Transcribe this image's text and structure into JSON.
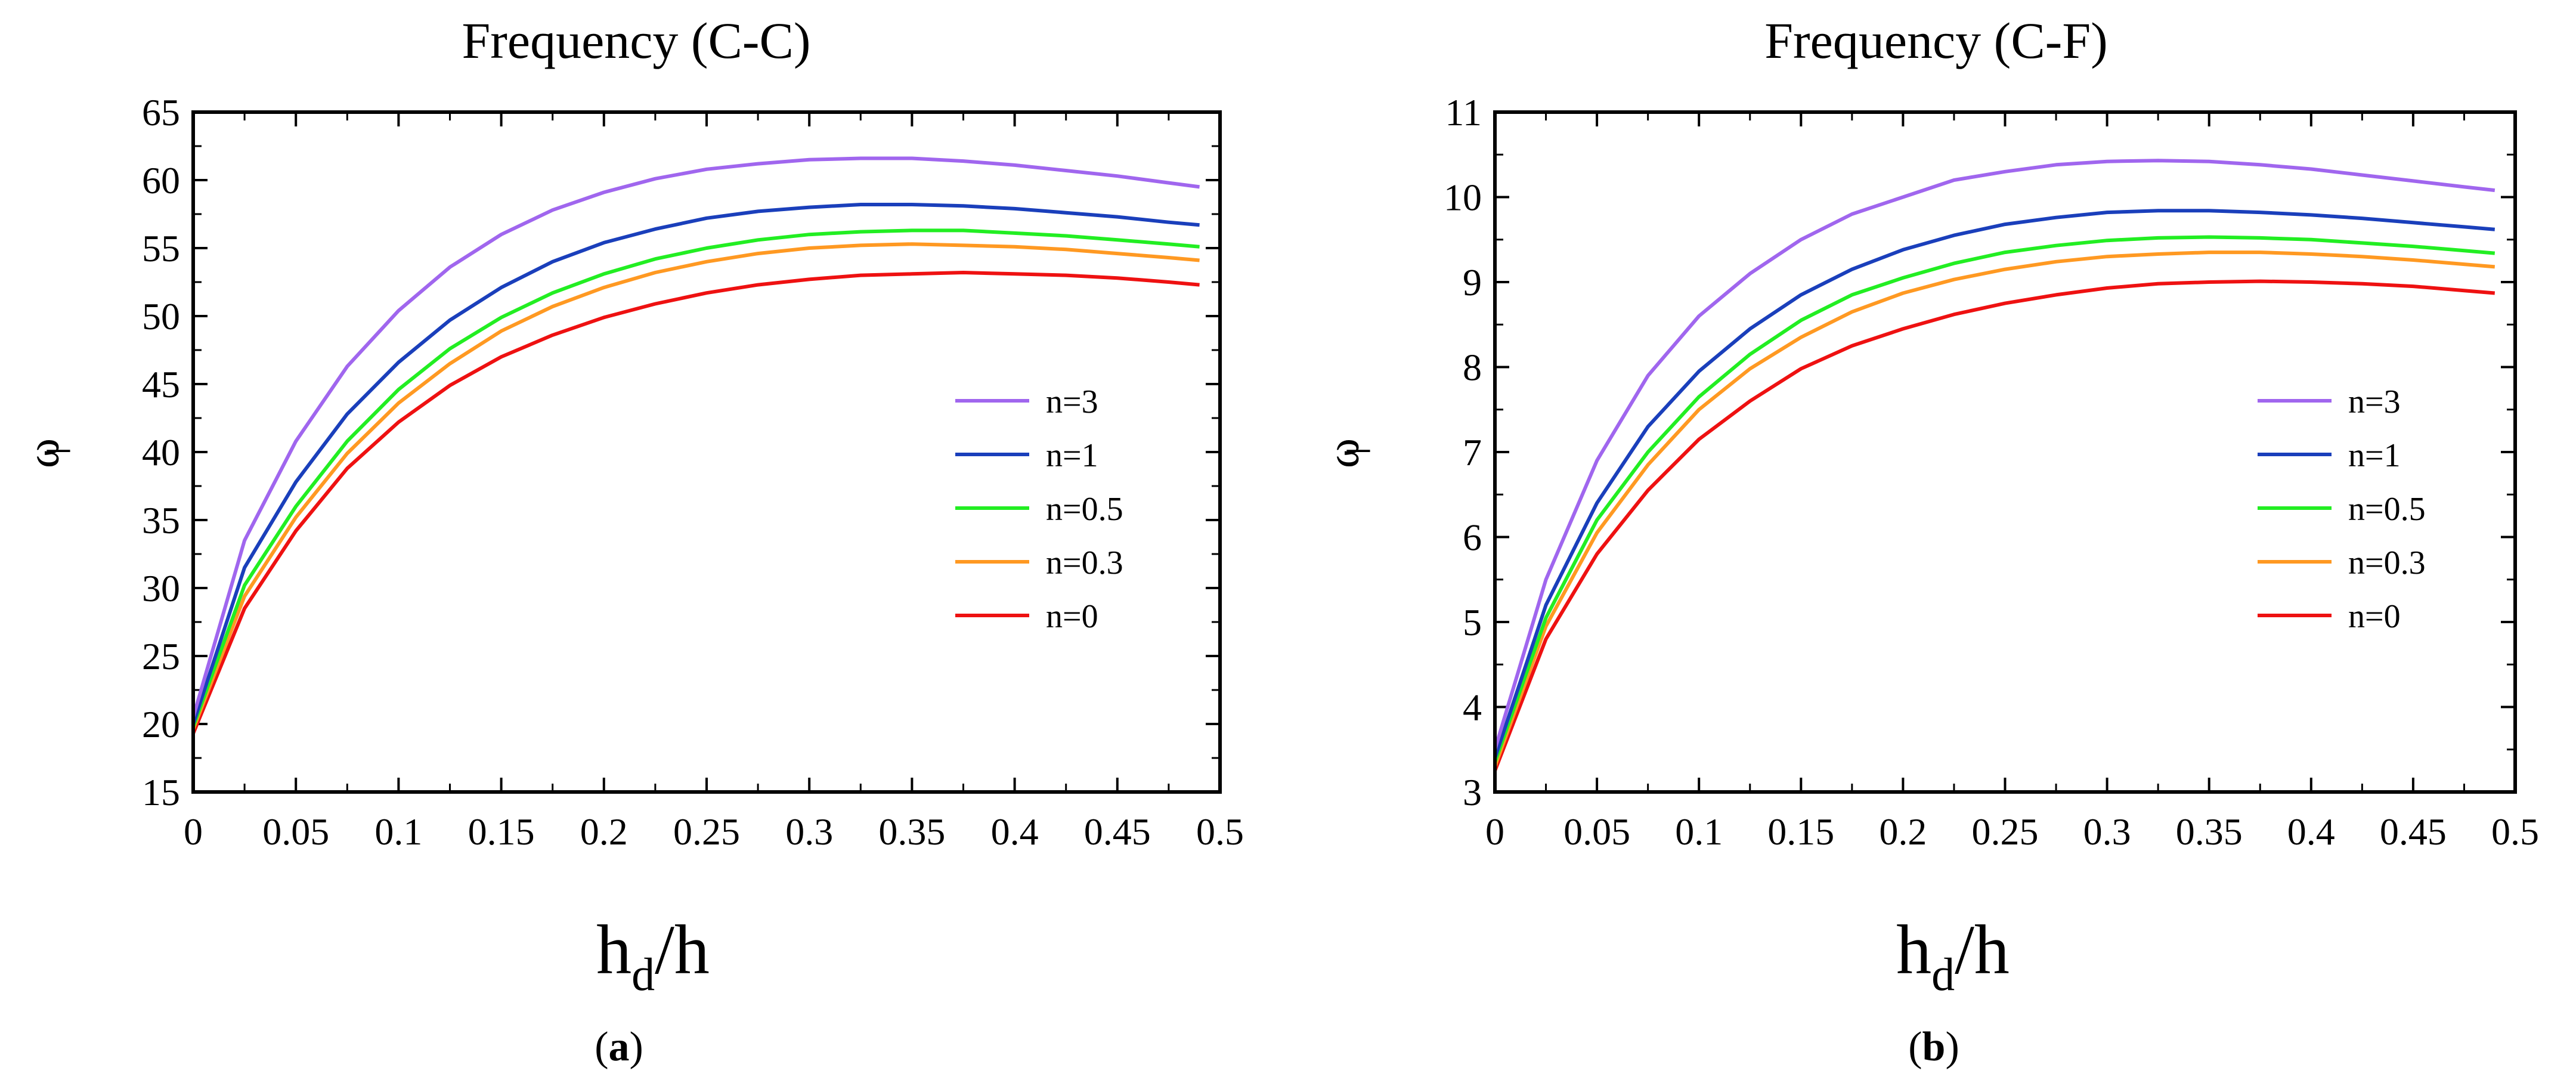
{
  "chart_data": [
    {
      "type": "line",
      "id": "a",
      "title": "Frequency (C-C)",
      "xlabel_main": "h",
      "xlabel_sub": "d",
      "xlabel_tail": "/h",
      "ylabel": "ω",
      "ylabel_bar": "_",
      "caption_open": "(",
      "caption_letter": "a",
      "caption_close": ")",
      "xlim": [
        0,
        0.5
      ],
      "ylim": [
        15,
        65
      ],
      "xticks": [
        0,
        0.05,
        0.1,
        0.15,
        0.2,
        0.25,
        0.3,
        0.35,
        0.4,
        0.45,
        0.5
      ],
      "xtick_labels": [
        "0",
        "0.05",
        "0.1",
        "0.15",
        "0.2",
        "0.25",
        "0.3",
        "0.35",
        "0.4",
        "0.45",
        "0.5"
      ],
      "yticks": [
        15,
        20,
        25,
        30,
        35,
        40,
        45,
        50,
        55,
        60,
        65
      ],
      "ytick_labels": [
        "15",
        "20",
        "25",
        "30",
        "35",
        "40",
        "45",
        "50",
        "55",
        "60",
        "65"
      ],
      "legend_position": "right-middle",
      "x": [
        0,
        0.025,
        0.05,
        0.075,
        0.1,
        0.125,
        0.15,
        0.175,
        0.2,
        0.225,
        0.25,
        0.275,
        0.3,
        0.325,
        0.35,
        0.375,
        0.4,
        0.425,
        0.45,
        0.475,
        0.49
      ],
      "series": [
        {
          "name": "n=3",
          "color": "#a066ee",
          "values": [
            20.5,
            33.5,
            40.8,
            46.3,
            50.4,
            53.6,
            56.0,
            57.8,
            59.1,
            60.1,
            60.8,
            61.2,
            61.5,
            61.6,
            61.6,
            61.4,
            61.1,
            60.7,
            60.3,
            59.8,
            59.5
          ]
        },
        {
          "name": "n=1",
          "color": "#1a3fbb",
          "values": [
            20.0,
            31.5,
            37.8,
            42.8,
            46.6,
            49.7,
            52.1,
            54.0,
            55.4,
            56.4,
            57.2,
            57.7,
            58.0,
            58.2,
            58.2,
            58.1,
            57.9,
            57.6,
            57.3,
            56.9,
            56.7
          ]
        },
        {
          "name": "n=0.5",
          "color": "#22ee22",
          "values": [
            19.8,
            30.2,
            36.0,
            40.8,
            44.6,
            47.6,
            49.9,
            51.7,
            53.1,
            54.2,
            55.0,
            55.6,
            56.0,
            56.2,
            56.3,
            56.3,
            56.1,
            55.9,
            55.6,
            55.3,
            55.1
          ]
        },
        {
          "name": "n=0.3",
          "color": "#ff9922",
          "values": [
            19.6,
            29.4,
            35.2,
            39.9,
            43.6,
            46.5,
            48.9,
            50.7,
            52.1,
            53.2,
            54.0,
            54.6,
            55.0,
            55.2,
            55.3,
            55.2,
            55.1,
            54.9,
            54.6,
            54.3,
            54.1
          ]
        },
        {
          "name": "n=0",
          "color": "#ee1111",
          "values": [
            19.3,
            28.5,
            34.2,
            38.8,
            42.2,
            44.9,
            47.0,
            48.6,
            49.9,
            50.9,
            51.7,
            52.3,
            52.7,
            53.0,
            53.1,
            53.2,
            53.1,
            53.0,
            52.8,
            52.5,
            52.3
          ]
        }
      ]
    },
    {
      "type": "line",
      "id": "b",
      "title": "Frequency (C-F)",
      "xlabel_main": "h",
      "xlabel_sub": "d",
      "xlabel_tail": "/h",
      "ylabel": "ω",
      "ylabel_bar": "_",
      "caption_open": "(",
      "caption_letter": "b",
      "caption_close": ")",
      "xlim": [
        0,
        0.5
      ],
      "ylim": [
        3,
        11
      ],
      "xticks": [
        0,
        0.05,
        0.1,
        0.15,
        0.2,
        0.25,
        0.3,
        0.35,
        0.4,
        0.45,
        0.5
      ],
      "xtick_labels": [
        "0",
        "0.05",
        "0.1",
        "0.15",
        "0.2",
        "0.25",
        "0.3",
        "0.35",
        "0.4",
        "0.45",
        "0.5"
      ],
      "yticks": [
        3,
        4,
        5,
        6,
        7,
        8,
        9,
        10,
        11
      ],
      "ytick_labels": [
        "3",
        "4",
        "5",
        "6",
        "7",
        "8",
        "9",
        "10",
        "11"
      ],
      "legend_position": "right-middle",
      "x": [
        0,
        0.025,
        0.05,
        0.075,
        0.1,
        0.125,
        0.15,
        0.175,
        0.2,
        0.225,
        0.25,
        0.275,
        0.3,
        0.325,
        0.35,
        0.375,
        0.4,
        0.425,
        0.45,
        0.475,
        0.49
      ],
      "series": [
        {
          "name": "n=3",
          "color": "#a066ee",
          "values": [
            3.5,
            5.5,
            6.9,
            7.9,
            8.6,
            9.1,
            9.5,
            9.8,
            10.0,
            10.2,
            10.3,
            10.38,
            10.42,
            10.43,
            10.42,
            10.38,
            10.33,
            10.26,
            10.19,
            10.12,
            10.08
          ]
        },
        {
          "name": "n=1",
          "color": "#1a3fbb",
          "values": [
            3.4,
            5.2,
            6.4,
            7.3,
            7.95,
            8.45,
            8.85,
            9.15,
            9.38,
            9.55,
            9.68,
            9.76,
            9.82,
            9.84,
            9.84,
            9.82,
            9.79,
            9.75,
            9.7,
            9.65,
            9.62
          ]
        },
        {
          "name": "n=0.5",
          "color": "#22ee22",
          "values": [
            3.35,
            5.05,
            6.2,
            7.0,
            7.65,
            8.15,
            8.55,
            8.85,
            9.05,
            9.22,
            9.35,
            9.43,
            9.49,
            9.52,
            9.53,
            9.52,
            9.5,
            9.46,
            9.42,
            9.37,
            9.34
          ]
        },
        {
          "name": "n=0.3",
          "color": "#ff9922",
          "values": [
            3.3,
            4.95,
            6.05,
            6.85,
            7.5,
            7.98,
            8.35,
            8.65,
            8.87,
            9.03,
            9.15,
            9.24,
            9.3,
            9.33,
            9.35,
            9.35,
            9.33,
            9.3,
            9.26,
            9.21,
            9.18
          ]
        },
        {
          "name": "n=0",
          "color": "#ee1111",
          "values": [
            3.25,
            4.8,
            5.8,
            6.55,
            7.15,
            7.6,
            7.98,
            8.25,
            8.45,
            8.62,
            8.75,
            8.85,
            8.93,
            8.98,
            9.0,
            9.01,
            9.0,
            8.98,
            8.95,
            8.9,
            8.87
          ]
        }
      ]
    }
  ]
}
